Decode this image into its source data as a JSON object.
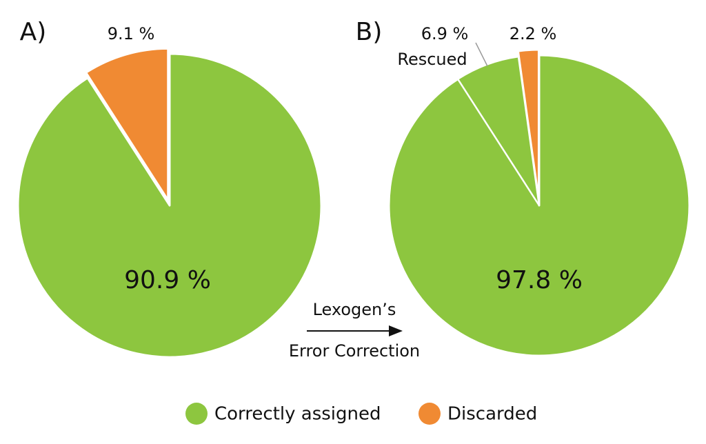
{
  "chart_data": [
    {
      "type": "pie",
      "title": "A)",
      "categories": [
        "Correctly assigned",
        "Discarded"
      ],
      "values": [
        90.9,
        9.1
      ],
      "value_labels": [
        "90.9 %",
        "9.1 %"
      ],
      "colors": [
        "#8dc63f",
        "#f08a33"
      ]
    },
    {
      "type": "pie",
      "title": "B)",
      "categories": [
        "Correctly assigned",
        "Discarded"
      ],
      "values": [
        97.8,
        2.2
      ],
      "value_labels": [
        "97.8 %",
        "2.2 %"
      ],
      "colors": [
        "#8dc63f",
        "#f08a33"
      ],
      "sub_slice": {
        "name": "Rescued",
        "value": 6.9,
        "value_label": "6.9 %"
      }
    }
  ],
  "arrow_label": [
    "Lexogen’s",
    "Error Correction"
  ]
}
